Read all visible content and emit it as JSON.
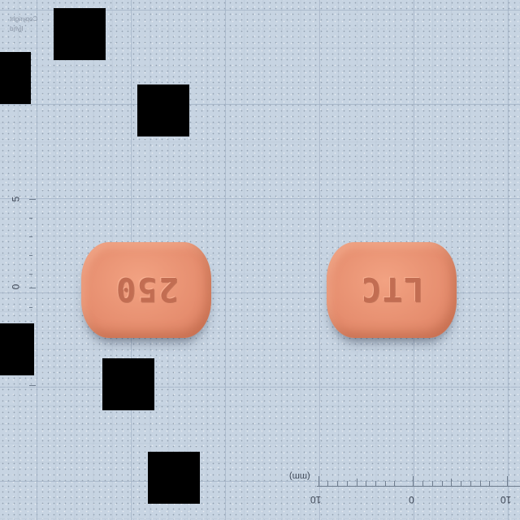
{
  "image": {
    "background": "grid-paper",
    "colors": {
      "paper": "#c7d4e2",
      "pill": "#e68e6f",
      "blocks": "#000000"
    }
  },
  "stamp": {
    "line1": "Copyright",
    "line2": "ljyhd"
  },
  "vertical_ruler": {
    "label_top": "5",
    "label_mid": "0"
  },
  "horizontal_ruler": {
    "unit": "(mm)",
    "label_left": "10",
    "label_mid": "0",
    "label_right": "10"
  },
  "pills": [
    {
      "imprint": "250"
    },
    {
      "imprint": "LTC"
    }
  ]
}
